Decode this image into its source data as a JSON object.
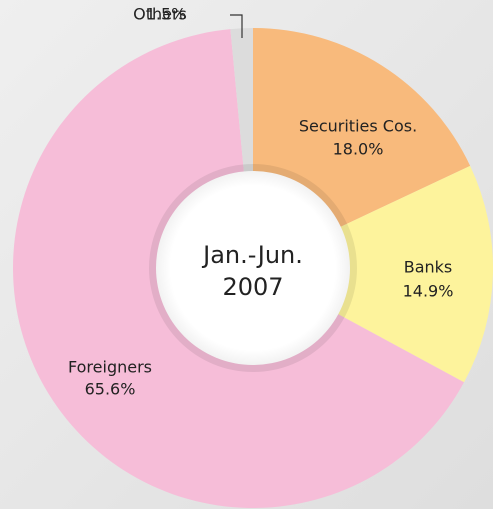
{
  "chart_data": {
    "type": "donut",
    "center_text": [
      "Jan.-Jun.",
      "2007"
    ],
    "categories": [
      "Securities Cos.",
      "Banks",
      "Foreigners",
      "Others"
    ],
    "values": [
      18.0,
      14.9,
      65.6,
      1.5
    ],
    "value_labels": [
      "18.0%",
      "14.9%",
      "65.6%",
      "1.5%"
    ],
    "colors": [
      "#f8ba7c",
      "#fdf39c",
      "#f6bdd8",
      "#dcdcdc"
    ]
  }
}
